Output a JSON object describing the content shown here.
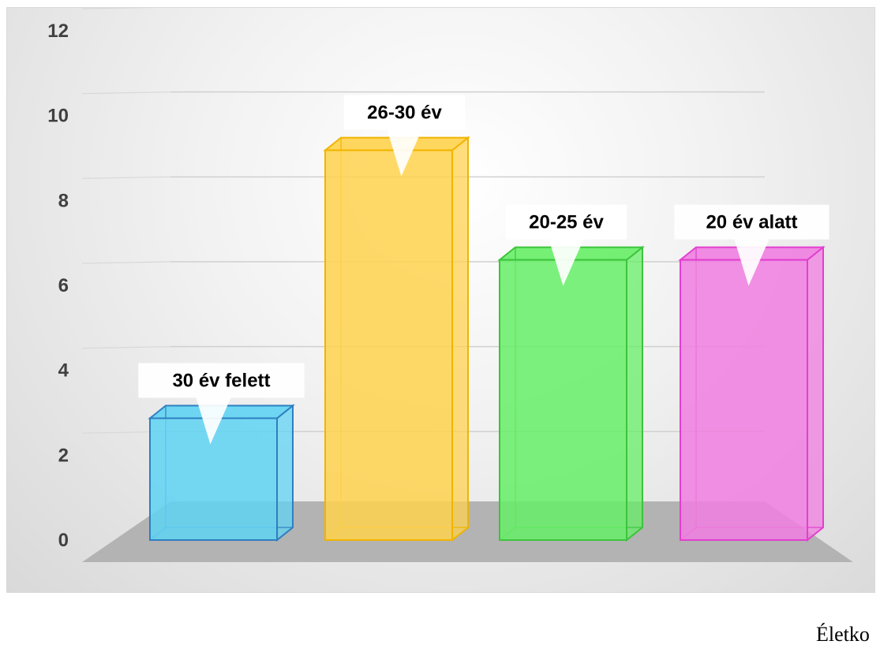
{
  "chart_data": {
    "type": "bar",
    "categories": [
      "30 év felett",
      "26-30 év",
      "20-25 év",
      "20 év alatt"
    ],
    "values": [
      3,
      9.6,
      6.9,
      6.9
    ],
    "data_labels": [
      "30 év felett",
      "26-30 év",
      "20-25 év",
      "20 év alatt"
    ],
    "colors": [
      "#5fd3f3",
      "#ffd24d",
      "#66ee66",
      "#f07ee0"
    ],
    "edge_colors": [
      "#2e7fc0",
      "#f0b400",
      "#3cc43c",
      "#e23fcf"
    ],
    "ylim": [
      0,
      12
    ],
    "yticks": [
      "0",
      "2",
      "4",
      "6",
      "8",
      "10",
      "12"
    ],
    "grid": true,
    "style": "3d-column"
  },
  "caption": "Életko"
}
